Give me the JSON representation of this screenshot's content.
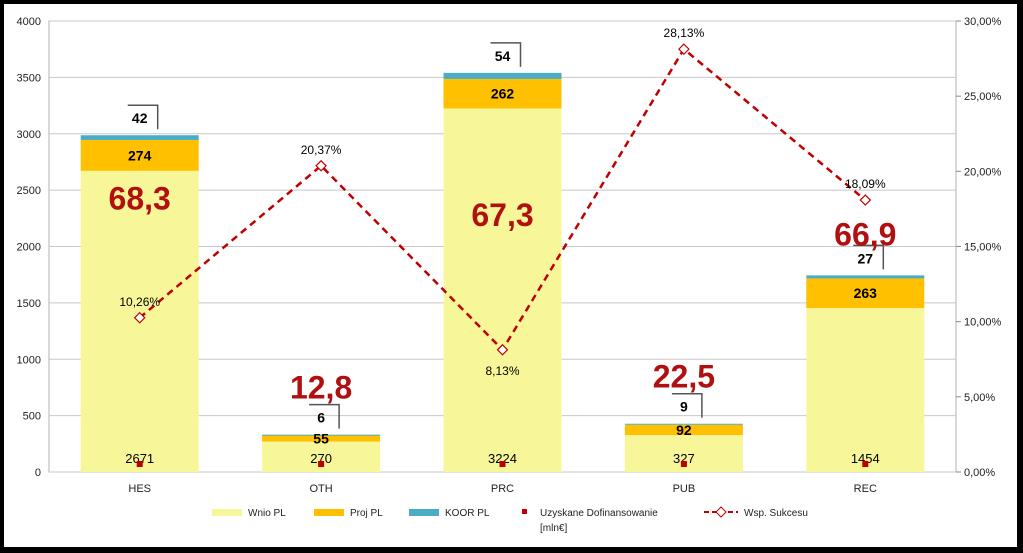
{
  "chart_data": {
    "type": "bar",
    "stacked": true,
    "categories": [
      "HES",
      "OTH",
      "PRC",
      "PUB",
      "REC"
    ],
    "series": [
      {
        "name": "Wnio PL",
        "values": [
          2671,
          270,
          3224,
          327,
          1454
        ],
        "color": "#f7f79a",
        "kind": "bar"
      },
      {
        "name": "Proj PL",
        "values": [
          274,
          55,
          262,
          92,
          263
        ],
        "color": "#ffc000",
        "kind": "bar"
      },
      {
        "name": "KOOR PL",
        "values": [
          42,
          6,
          54,
          9,
          27
        ],
        "color": "#4bacc6",
        "kind": "bar"
      },
      {
        "name": "Uzyskane Dofinansowanie [mln€]",
        "values": [
          68.3,
          12.8,
          67.3,
          22.5,
          66.9
        ],
        "labels": [
          "68,3",
          "12,8",
          "67,3",
          "22,5",
          "66,9"
        ],
        "color": "#c00000",
        "kind": "marker"
      },
      {
        "name": "Wsp. Sukcesu",
        "values": [
          10.26,
          20.37,
          8.13,
          28.13,
          18.09
        ],
        "labels": [
          "10,26%",
          "20,37%",
          "8,13%",
          "28,13%",
          "18,09%"
        ],
        "color": "#c00000",
        "kind": "line",
        "axis": "right"
      }
    ],
    "legend": {
      "position": "bottom",
      "items": [
        "Wnio PL",
        "Proj PL",
        "KOOR PL",
        "Uzyskane Dofinansowanie",
        "[mln€]",
        "Wsp. Sukcesu"
      ]
    },
    "y_left": {
      "ylim": [
        0,
        4000
      ],
      "ticks": [
        "0",
        "500",
        "1000",
        "1500",
        "2000",
        "2500",
        "3000",
        "3500",
        "4000"
      ]
    },
    "y_right": {
      "ylim": [
        0,
        30
      ],
      "ticks": [
        "0,00%",
        "5,00%",
        "10,00%",
        "15,00%",
        "20,00%",
        "25,00%",
        "30,00%"
      ]
    },
    "grid": true
  }
}
